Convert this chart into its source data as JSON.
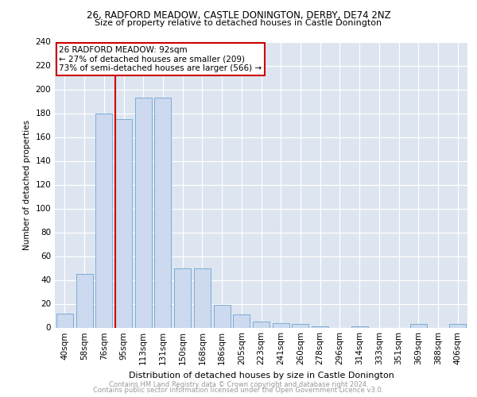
{
  "title1": "26, RADFORD MEADOW, CASTLE DONINGTON, DERBY, DE74 2NZ",
  "title2": "Size of property relative to detached houses in Castle Donington",
  "xlabel": "Distribution of detached houses by size in Castle Donington",
  "ylabel": "Number of detached properties",
  "categories": [
    "40sqm",
    "58sqm",
    "76sqm",
    "95sqm",
    "113sqm",
    "131sqm",
    "150sqm",
    "168sqm",
    "186sqm",
    "205sqm",
    "223sqm",
    "241sqm",
    "260sqm",
    "278sqm",
    "296sqm",
    "314sqm",
    "333sqm",
    "351sqm",
    "369sqm",
    "388sqm",
    "406sqm"
  ],
  "values": [
    12,
    45,
    180,
    175,
    193,
    193,
    50,
    50,
    19,
    11,
    5,
    4,
    3,
    1,
    0,
    1,
    0,
    0,
    3,
    0,
    3
  ],
  "bar_color": "#ccd9ee",
  "bar_edge_color": "#7badd4",
  "vline_x_idx": 3,
  "vline_color": "#cc0000",
  "annotation_text": "26 RADFORD MEADOW: 92sqm\n← 27% of detached houses are smaller (209)\n73% of semi-detached houses are larger (566) →",
  "annotation_box_color": "#ffffff",
  "annotation_box_edge": "#cc0000",
  "footer1": "Contains HM Land Registry data © Crown copyright and database right 2024.",
  "footer2": "Contains public sector information licensed under the Open Government Licence v3.0.",
  "bg_color": "#dde5f0",
  "ylim": [
    0,
    240
  ],
  "yticks": [
    0,
    20,
    40,
    60,
    80,
    100,
    120,
    140,
    160,
    180,
    200,
    220,
    240
  ],
  "title1_fontsize": 8.5,
  "title2_fontsize": 8.0,
  "xlabel_fontsize": 8.0,
  "ylabel_fontsize": 7.5,
  "tick_fontsize": 7.5,
  "annot_fontsize": 7.5,
  "footer_fontsize": 6.0
}
